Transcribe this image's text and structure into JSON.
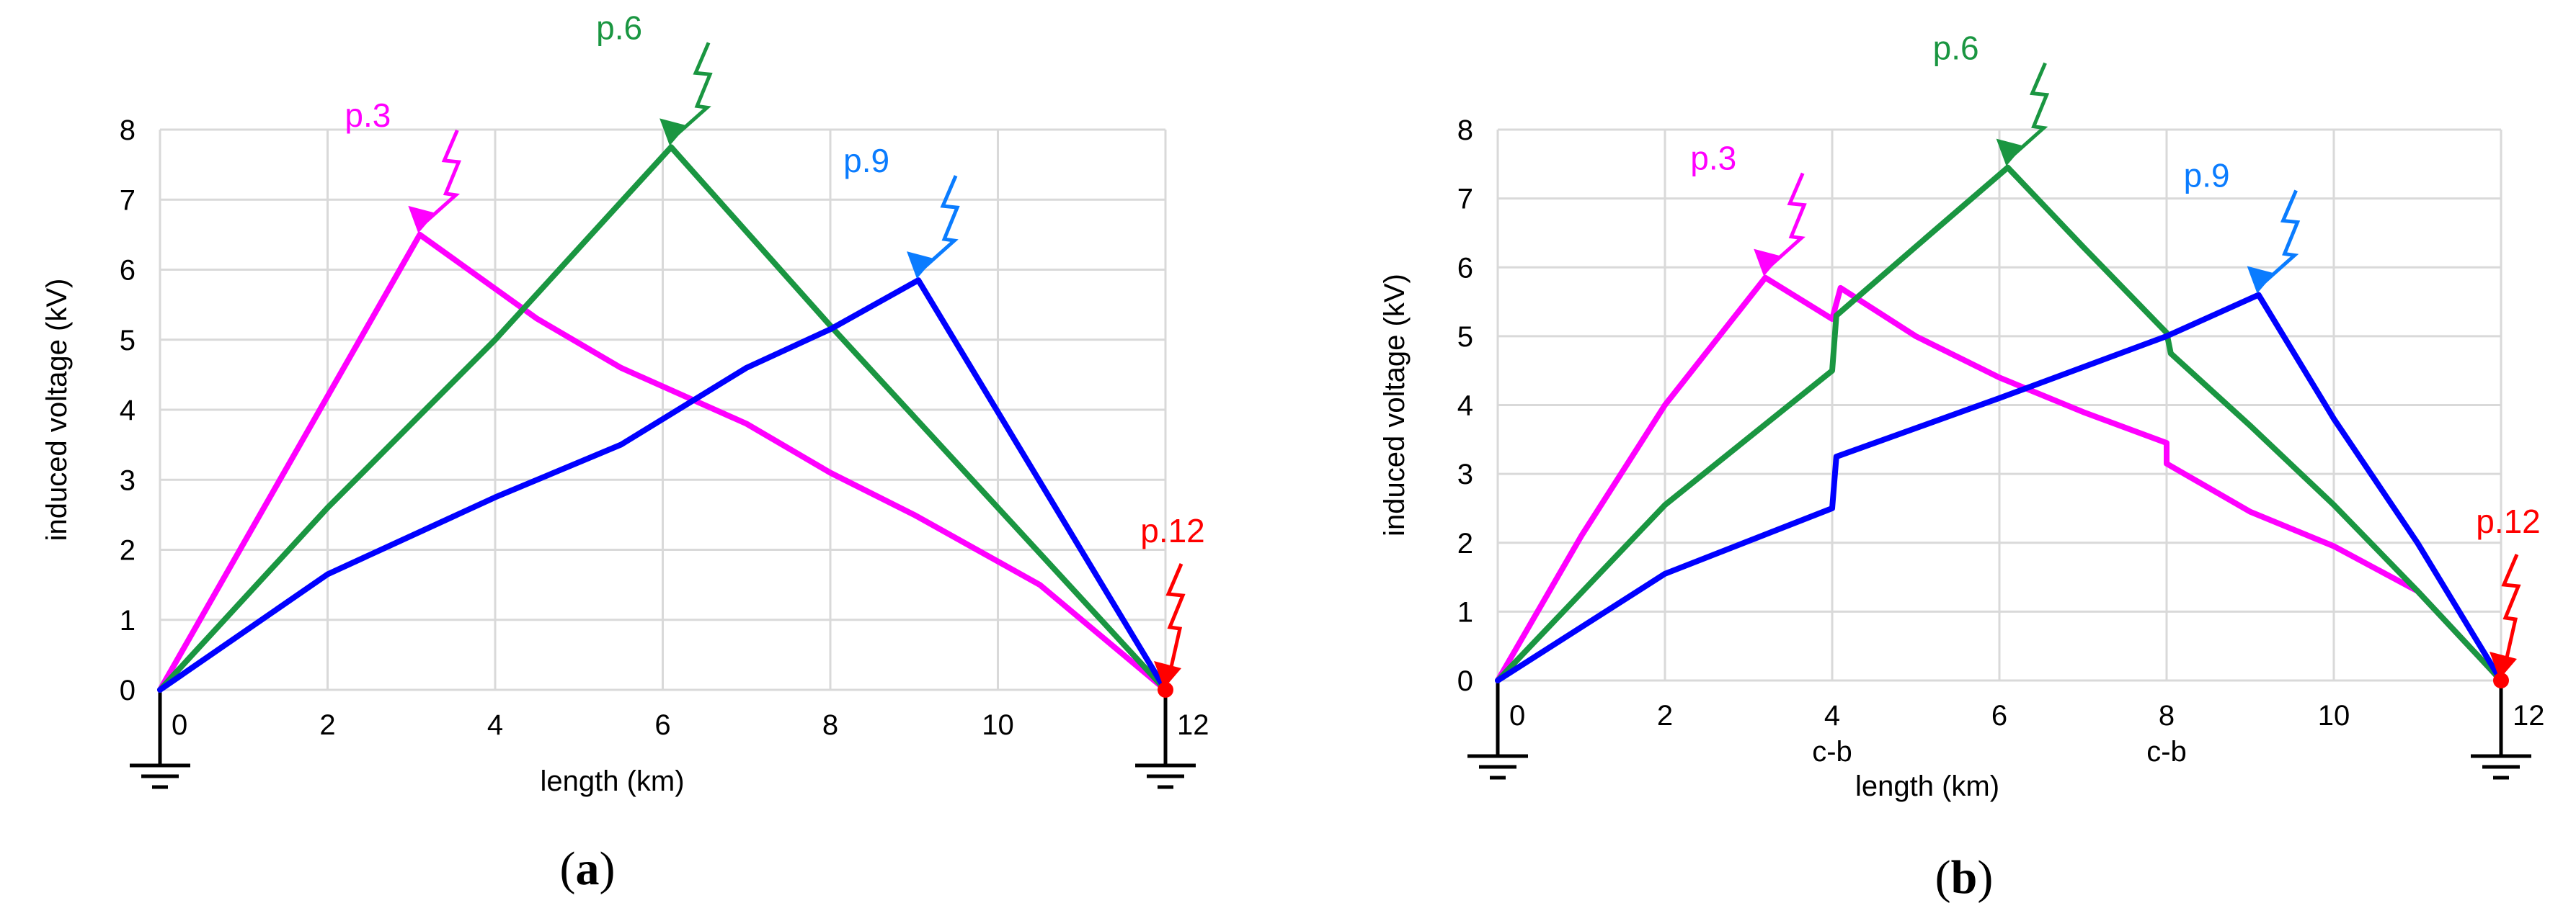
{
  "chart_data": [
    {
      "type": "line",
      "panel": "a",
      "caption_letter": "a",
      "xlabel": "length (km)",
      "ylabel": "induced voltage (kV)",
      "xlim": [
        0,
        12
      ],
      "ylim": [
        0,
        8
      ],
      "x_ticks": [
        "0",
        "2",
        "4",
        "6",
        "8",
        "10",
        "12"
      ],
      "y_ticks": [
        "0",
        "1",
        "2",
        "3",
        "4",
        "5",
        "6",
        "7",
        "8"
      ],
      "extra_x_labels": [],
      "series": [
        {
          "name": "p.3",
          "color": "#ff00ff",
          "strike_x": 3,
          "x": [
            0,
            3.1,
            4.5,
            5.5,
            7,
            8,
            9,
            10.5,
            12
          ],
          "y": [
            0,
            6.5,
            5.3,
            4.6,
            3.8,
            3.1,
            2.5,
            1.5,
            0
          ]
        },
        {
          "name": "p.6",
          "color": "#1a9641",
          "strike_x": 6,
          "x": [
            0,
            2,
            4,
            6.1,
            8,
            10,
            12
          ],
          "y": [
            0,
            2.6,
            5.0,
            7.75,
            5.2,
            2.6,
            0
          ]
        },
        {
          "name": "p.9",
          "color": "#0000ff",
          "strike_x": 9,
          "x": [
            0,
            2,
            4,
            5.5,
            7,
            8,
            9.05,
            12
          ],
          "y": [
            0,
            1.65,
            2.75,
            3.5,
            4.6,
            5.15,
            5.85,
            0
          ]
        },
        {
          "name": "p.12",
          "color": "#ff0000",
          "strike_x": 12,
          "x": [
            12
          ],
          "y": [
            0
          ]
        }
      ]
    },
    {
      "type": "line",
      "panel": "b",
      "caption_letter": "b",
      "xlabel": "length (km)",
      "ylabel": "induced voltage (kV)",
      "xlim": [
        0,
        12
      ],
      "ylim": [
        0,
        8
      ],
      "x_ticks": [
        "0",
        "2",
        "4",
        "6",
        "8",
        "10",
        "12"
      ],
      "y_ticks": [
        "0",
        "1",
        "2",
        "3",
        "4",
        "5",
        "6",
        "7",
        "8"
      ],
      "extra_x_labels": [
        {
          "x": 4,
          "text": "c-b"
        },
        {
          "x": 8,
          "text": "c-b"
        }
      ],
      "series": [
        {
          "name": "p.3",
          "color": "#ff00ff",
          "strike_x": 3,
          "x": [
            0,
            1,
            2,
            3.2,
            4,
            4.1,
            5,
            6,
            7,
            8,
            8,
            9,
            10,
            11,
            12
          ],
          "y": [
            0,
            2.1,
            4.0,
            5.85,
            5.25,
            5.7,
            5.0,
            4.4,
            3.9,
            3.45,
            3.15,
            2.45,
            1.95,
            1.3,
            0
          ]
        },
        {
          "name": "p.6",
          "color": "#1a9641",
          "strike_x": 6,
          "x": [
            0,
            2,
            4,
            4.05,
            5,
            6.1,
            7,
            8,
            8.05,
            9,
            10,
            11,
            12
          ],
          "y": [
            0,
            2.55,
            4.5,
            5.3,
            6.3,
            7.45,
            6.3,
            5.05,
            4.75,
            3.7,
            2.55,
            1.3,
            0
          ]
        },
        {
          "name": "p.9",
          "color": "#0000ff",
          "strike_x": 9,
          "x": [
            0,
            2,
            4,
            4.05,
            6,
            8,
            9.1,
            10,
            11,
            12
          ],
          "y": [
            0,
            1.55,
            2.5,
            3.25,
            4.1,
            5.0,
            5.6,
            3.8,
            2.0,
            0
          ]
        },
        {
          "name": "p.12",
          "color": "#ff0000",
          "strike_x": 12,
          "x": [
            12
          ],
          "y": [
            0
          ]
        }
      ]
    }
  ]
}
